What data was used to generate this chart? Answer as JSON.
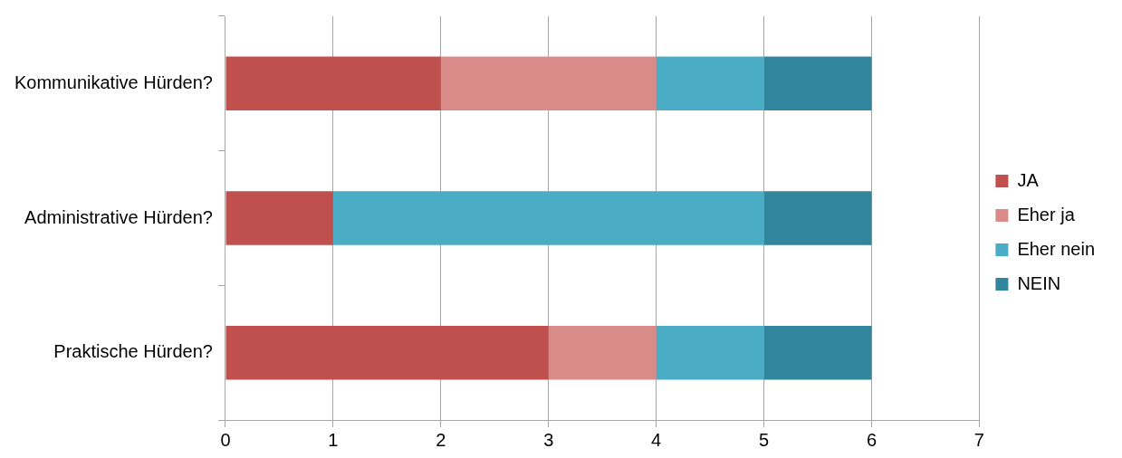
{
  "chart_data": {
    "type": "bar",
    "orientation": "horizontal",
    "stacked": true,
    "categories": [
      "Kommunikative Hürden?",
      "Administrative Hürden?",
      "Praktische Hürden?"
    ],
    "series": [
      {
        "name": "JA",
        "color": "#c0504d",
        "values": [
          2,
          1,
          3
        ]
      },
      {
        "name": "Eher ja",
        "color": "#d98b89",
        "values": [
          2,
          0,
          1
        ]
      },
      {
        "name": "Eher nein",
        "color": "#4bacc6",
        "values": [
          1,
          4,
          1
        ]
      },
      {
        "name": "NEIN",
        "color": "#31859c",
        "values": [
          1,
          1,
          1
        ]
      }
    ],
    "xlim": [
      0,
      7
    ],
    "xticks": [
      0,
      1,
      2,
      3,
      4,
      5,
      6,
      7
    ],
    "grid": "x",
    "legend": "right"
  }
}
